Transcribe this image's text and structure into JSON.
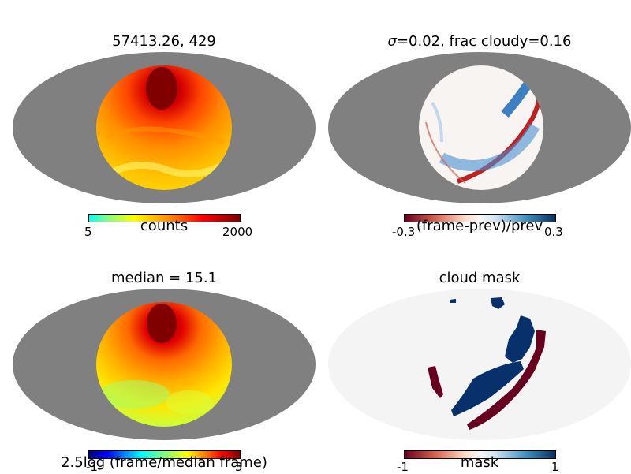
{
  "panels": [
    {
      "title": "57413.26, 429",
      "colorbar": {
        "min_label": "5",
        "max_label": "2000",
        "label": "counts",
        "colormap": "jet"
      }
    },
    {
      "title": "σ=0.02, frac cloudy=0.16",
      "title_sigma": "σ",
      "title_rest": "=0.02, frac cloudy=0.16",
      "colorbar": {
        "min_label": "-0.3",
        "max_label": "0.3",
        "label": "(frame-prev)/prev",
        "colormap": "RdBu"
      }
    },
    {
      "title": "median = 15.1",
      "colorbar": {
        "min_label": "-1",
        "max_label": "3",
        "label": "2.5log (frame/median frame)",
        "colormap": "jet"
      }
    },
    {
      "title": "cloud mask",
      "colorbar": {
        "min_label": "-1",
        "max_label": "1",
        "label": "mask",
        "colormap": "RdBu"
      }
    }
  ],
  "colors": {
    "background_gray": "#808080",
    "mask_background": "#f4f4f4",
    "dark_red": "#7f0000",
    "dark_blue": "#08306b"
  }
}
